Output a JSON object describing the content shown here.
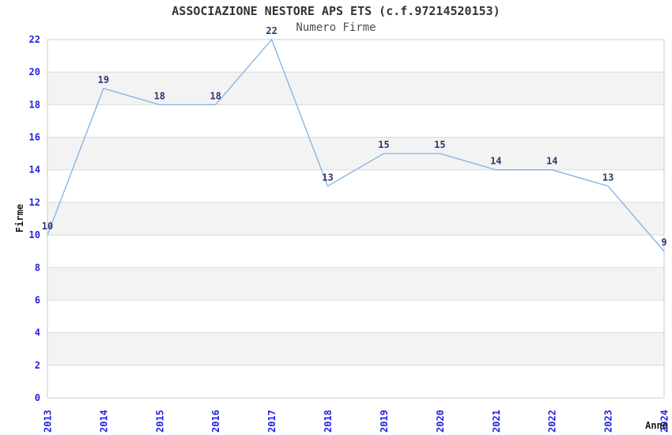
{
  "chart_data": {
    "type": "line",
    "title": "ASSOCIAZIONE NESTORE APS ETS (c.f.97214520153)",
    "subtitle": "Numero Firme",
    "xlabel": "Anno",
    "ylabel": "Firme",
    "categories": [
      "2013",
      "2014",
      "2015",
      "2016",
      "2017",
      "2018",
      "2019",
      "2020",
      "2021",
      "2022",
      "2023",
      "2024"
    ],
    "values": [
      10,
      19,
      18,
      18,
      22,
      13,
      15,
      15,
      14,
      14,
      13,
      9
    ],
    "ylim": [
      0,
      22
    ],
    "ytick_step": 2,
    "grid": true,
    "legend_position": "none",
    "data_labels_visible": true,
    "colors": {
      "line": "#7EB2E6",
      "tick_label": "#2222DD",
      "data_label": "#333377",
      "band": "#F3F3F3",
      "gridline": "#D9D9D9",
      "border": "#CCCCCC",
      "title": "#333333",
      "subtitle": "#4D4D4D",
      "axis_label": "#1A1A1A",
      "background": "#FFFFFF"
    }
  }
}
